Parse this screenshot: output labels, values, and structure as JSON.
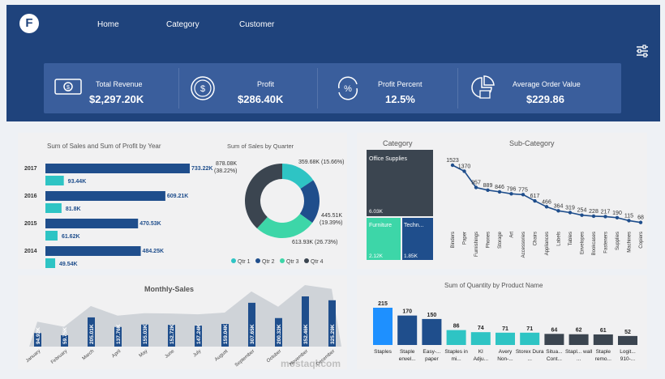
{
  "brand": {
    "logo_letter": "F"
  },
  "nav": {
    "items": [
      "Home",
      "Category",
      "Customer"
    ]
  },
  "kpis": [
    {
      "title": "Total Revenue",
      "value": "$2,297.20K",
      "icon": "money-bill-icon"
    },
    {
      "title": "Profit",
      "value": "$286.40K",
      "icon": "dollar-coin-icon"
    },
    {
      "title": "Profit Percent",
      "value": "12.5%",
      "icon": "percent-icon"
    },
    {
      "title": "Average Order Value",
      "value": "$229.86",
      "icon": "cart-chart-icon"
    }
  ],
  "colors": {
    "navy": "#1f437c",
    "dark_blue": "#1f4e8c",
    "teal": "#2ec4c4",
    "green": "#3dd6a8",
    "charcoal": "#3b4550",
    "light_blue": "#1e90ff"
  },
  "chart_data": [
    {
      "type": "bar",
      "title": "Sum of Sales and Sum of Profit by Year",
      "categories": [
        "2017",
        "2016",
        "2015",
        "2014"
      ],
      "series": [
        {
          "name": "Sum of Sales",
          "values": [
            733.22,
            609.21,
            470.53,
            484.25
          ],
          "labels": [
            "733.22K",
            "609.21K",
            "470.53K",
            "484.25K"
          ]
        },
        {
          "name": "Sum of Profit",
          "values": [
            93.44,
            81.8,
            61.62,
            49.54
          ],
          "labels": [
            "93.44K",
            "81.8K",
            "61.62K",
            "49.54K"
          ]
        }
      ]
    },
    {
      "type": "pie",
      "title": "Sum of Sales by Quarter",
      "categories": [
        "Qtr 1",
        "Qtr 2",
        "Qtr 3",
        "Qtr 4"
      ],
      "values": [
        359.68,
        445.51,
        613.93,
        878.08
      ],
      "labels": [
        "359.68K (15.66%)",
        "445.51K (19.39%)",
        "613.93K (26.73%)",
        "878.08K (38.22%)"
      ],
      "colors": [
        "#2ec4c4",
        "#1f4e8c",
        "#3dd6a8",
        "#3b4550"
      ]
    },
    {
      "type": "heatmap",
      "title": "Category",
      "categories": [
        "Office Supplies",
        "Furniture",
        "Techn..."
      ],
      "values": [
        6.03,
        2.12,
        1.85
      ],
      "labels": [
        "6.03K",
        "2.12K",
        "1.85K"
      ]
    },
    {
      "type": "line",
      "title": "Sub-Category",
      "categories": [
        "Binders",
        "Paper",
        "Furnishings",
        "Phones",
        "Storage",
        "Art",
        "Accessories",
        "Chairs",
        "Appliances",
        "Labels",
        "Tables",
        "Envelopes",
        "Bookcases",
        "Fasteners",
        "Supplies",
        "Machines",
        "Copiers"
      ],
      "values": [
        1523,
        1370,
        957,
        889,
        846,
        796,
        775,
        617,
        466,
        364,
        319,
        254,
        228,
        217,
        190,
        115,
        68
      ]
    },
    {
      "type": "bar",
      "title": "Monthly-Sales",
      "categories": [
        "January",
        "February",
        "March",
        "April",
        "May",
        "June",
        "July",
        "August",
        "September",
        "October",
        "November",
        "December"
      ],
      "values": [
        94.92,
        59.75,
        205.01,
        137.76,
        155.03,
        152.72,
        147.24,
        159.04,
        307.65,
        200.32,
        352.46,
        325.29
      ],
      "labels": [
        "94.92K",
        "59.75K",
        "205.01K",
        "137.76K",
        "155.03K",
        "152.72K",
        "147.24K",
        "159.04K",
        "307.65K",
        "200.32K",
        "352.46K",
        "325.29K"
      ]
    },
    {
      "type": "bar",
      "title": "Sum of Quantity by Product Name",
      "categories": [
        "Staples",
        "Staple envel...",
        "Easy-... paper",
        "Staples in mi...",
        "KI Adju...",
        "Avery Non-...",
        "Storex Dura ...",
        "Situa... Cont...",
        "Stapl... wall ...",
        "Staple remo...",
        "Logit... 910-..."
      ],
      "values": [
        215,
        170,
        150,
        86,
        74,
        71,
        71,
        64,
        62,
        61,
        52
      ]
    }
  ],
  "watermark": {
    "text": "mostaql.com"
  }
}
